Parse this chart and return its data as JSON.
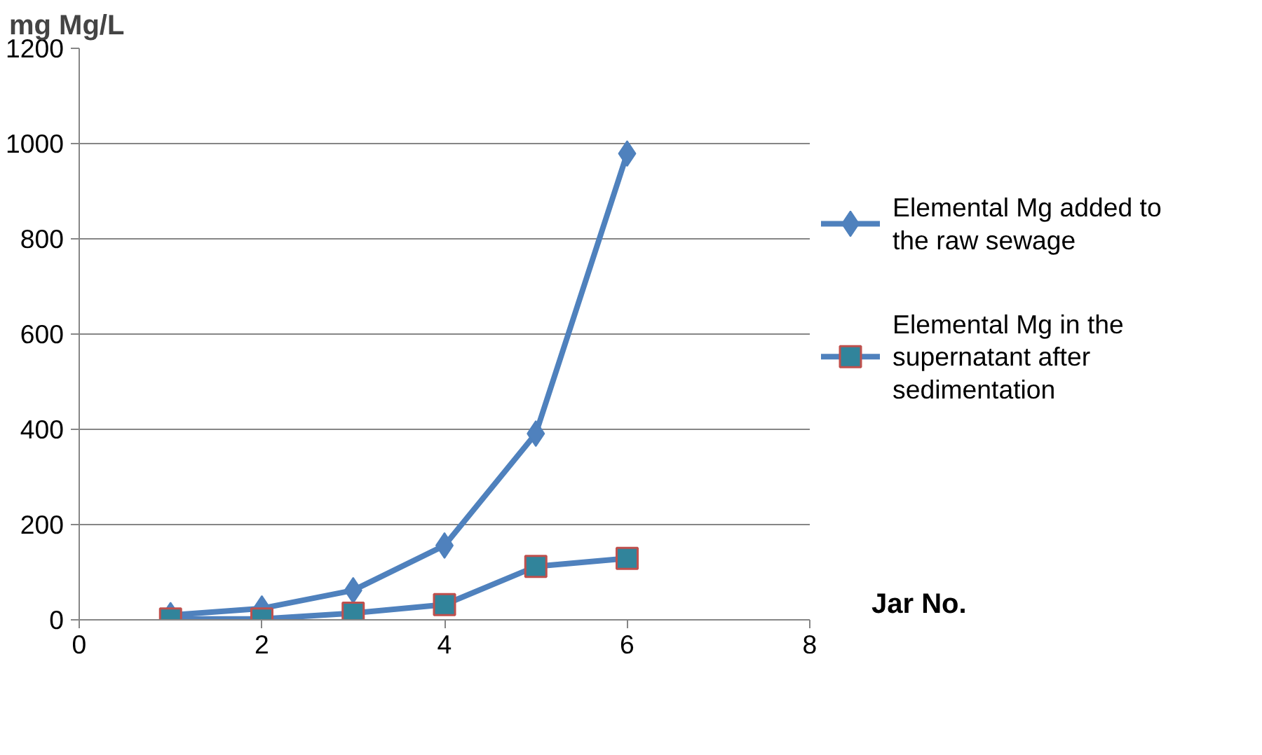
{
  "chart_data": {
    "type": "line",
    "xlabel": "Jar No.",
    "ylabel": "mg Mg/L",
    "x": [
      1,
      2,
      3,
      4,
      5,
      6
    ],
    "series": [
      {
        "name": "Elemental Mg added to the raw sewage",
        "color": "#4f81bd",
        "marker": "diamond",
        "values": [
          10,
          24,
          62,
          156,
          391,
          979
        ]
      },
      {
        "name": "Elemental Mg in the supernatant after sedimentation",
        "color": "#4f81bd",
        "marker": "square",
        "values": [
          2,
          2,
          14,
          32,
          112,
          129
        ]
      }
    ],
    "xlim": [
      0,
      8
    ],
    "xticks": [
      0,
      2,
      4,
      6,
      8
    ],
    "ylim": [
      0,
      1200
    ],
    "yticks": [
      0,
      200,
      400,
      600,
      800,
      1000,
      1200
    ],
    "grid": "y",
    "legend": "right",
    "line_style": "solid"
  }
}
